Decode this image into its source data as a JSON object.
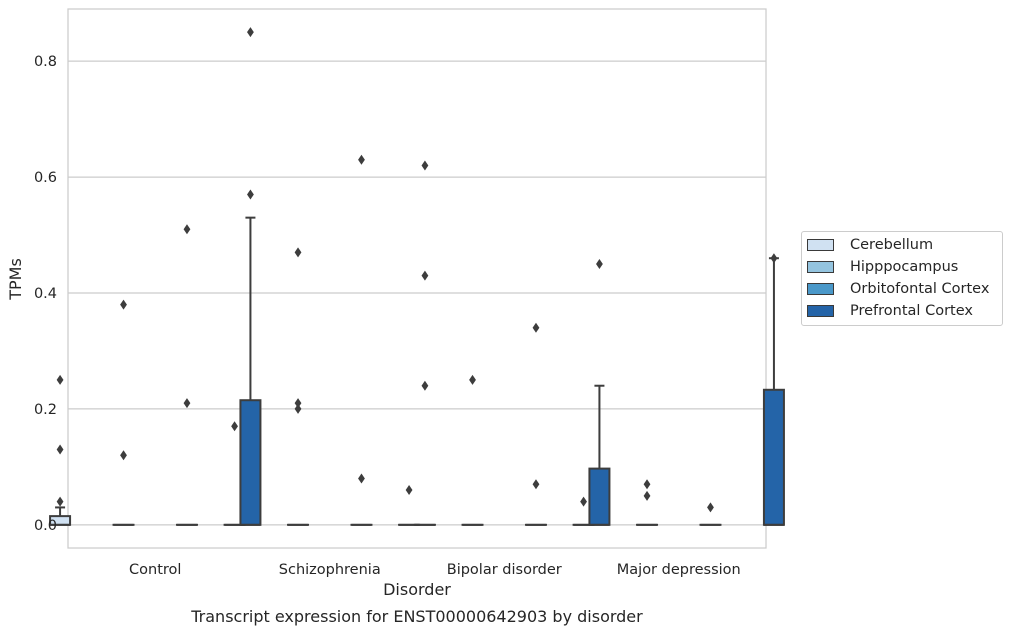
{
  "chart_data": {
    "type": "boxplot",
    "title": "",
    "caption": "Transcript expression for ENST00000642903 by disorder",
    "xlabel": "Disorder",
    "ylabel": "TPMs",
    "categories": [
      "Control",
      "Schizophrenia",
      "Bipolar disorder",
      "Major depression"
    ],
    "ylim": [
      -0.04,
      0.89
    ],
    "yticks": [
      "0.0",
      "0.2",
      "0.4",
      "0.6",
      "0.8"
    ],
    "grid": true,
    "legend_position": "right",
    "series": [
      {
        "name": "Cerebellum",
        "color": "#d0e1f2",
        "boxes": [
          {
            "q1": 0.0,
            "median": 0.0,
            "q3": 0.015,
            "whisker_low": 0.0,
            "whisker_high": 0.03,
            "outliers": [
              0.04,
              0.13,
              0.25
            ]
          },
          {
            "q1": 0.0,
            "median": 0.0,
            "q3": 0.0,
            "whisker_low": 0.0,
            "whisker_high": 0.0,
            "outliers": [
              0.17
            ]
          },
          {
            "q1": 0.0,
            "median": 0.0,
            "q3": 0.0,
            "whisker_low": 0.0,
            "whisker_high": 0.0,
            "outliers": [
              0.06
            ]
          },
          {
            "q1": 0.0,
            "median": 0.0,
            "q3": 0.0,
            "whisker_low": 0.0,
            "whisker_high": 0.0,
            "outliers": [
              0.04
            ]
          }
        ]
      },
      {
        "name": "Hipppocampus",
        "color": "#94c4df",
        "boxes": [
          {
            "q1": 0.0,
            "median": 0.0,
            "q3": 0.0,
            "whisker_low": 0.0,
            "whisker_high": 0.0,
            "outliers": [
              0.12,
              0.38
            ]
          },
          {
            "q1": 0.0,
            "median": 0.0,
            "q3": 0.0,
            "whisker_low": 0.0,
            "whisker_high": 0.0,
            "outliers": [
              0.2,
              0.21,
              0.47
            ]
          },
          {
            "q1": 0.0,
            "median": 0.0,
            "q3": 0.0,
            "whisker_low": 0.0,
            "whisker_high": 0.0,
            "outliers": [
              0.25
            ]
          },
          {
            "q1": 0.0,
            "median": 0.0,
            "q3": 0.0,
            "whisker_low": 0.0,
            "whisker_high": 0.0,
            "outliers": [
              0.05,
              0.07
            ]
          }
        ]
      },
      {
        "name": "Orbitofontal Cortex",
        "color": "#4a98c9",
        "boxes": [
          {
            "q1": 0.0,
            "median": 0.0,
            "q3": 0.0,
            "whisker_low": 0.0,
            "whisker_high": 0.0,
            "outliers": [
              0.21,
              0.51
            ]
          },
          {
            "q1": 0.0,
            "median": 0.0,
            "q3": 0.0,
            "whisker_low": 0.0,
            "whisker_high": 0.0,
            "outliers": [
              0.08,
              0.63
            ]
          },
          {
            "q1": 0.0,
            "median": 0.0,
            "q3": 0.0,
            "whisker_low": 0.0,
            "whisker_high": 0.0,
            "outliers": [
              0.07,
              0.34
            ]
          },
          {
            "q1": 0.0,
            "median": 0.0,
            "q3": 0.0,
            "whisker_low": 0.0,
            "whisker_high": 0.0,
            "outliers": [
              0.03
            ]
          }
        ]
      },
      {
        "name": "Prefrontal Cortex",
        "color": "#2464a8",
        "boxes": [
          {
            "q1": 0.0,
            "median": 0.0,
            "q3": 0.215,
            "whisker_low": 0.0,
            "whisker_high": 0.53,
            "outliers": [
              0.57,
              0.85
            ]
          },
          {
            "q1": 0.0,
            "median": 0.0,
            "q3": 0.0,
            "whisker_low": 0.0,
            "whisker_high": 0.0,
            "outliers": [
              0.24,
              0.43,
              0.62
            ]
          },
          {
            "q1": 0.0,
            "median": 0.0,
            "q3": 0.097,
            "whisker_low": 0.0,
            "whisker_high": 0.24,
            "outliers": [
              0.45
            ]
          },
          {
            "q1": 0.0,
            "median": 0.0,
            "q3": 0.233,
            "whisker_low": 0.0,
            "whisker_high": 0.46,
            "outliers": [
              0.46
            ]
          }
        ]
      }
    ]
  }
}
